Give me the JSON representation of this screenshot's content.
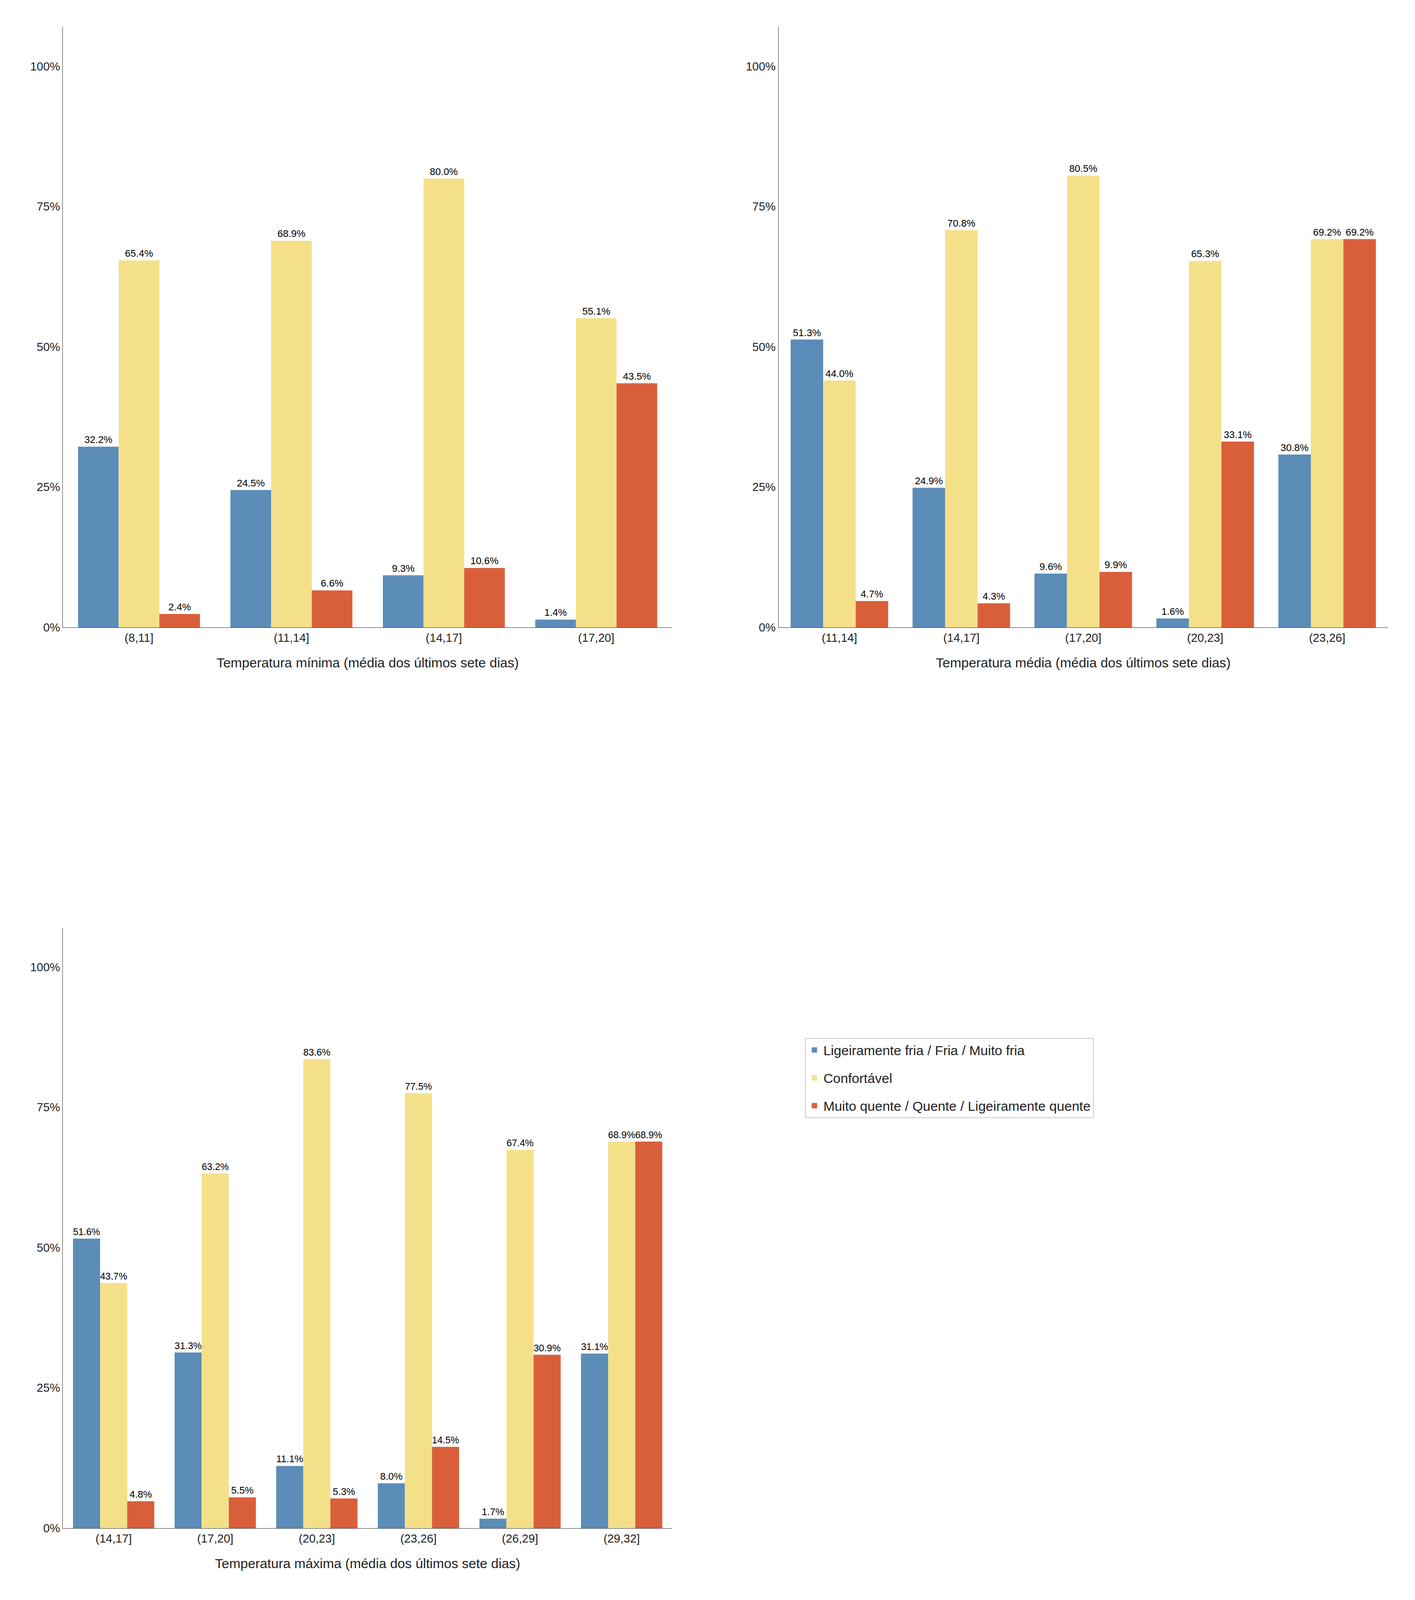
{
  "chart_data": [
    {
      "type": "bar",
      "xlabel": "Temperatura mínima (média dos últimos sete dias)",
      "categories": [
        "(8,11]",
        "(11,14]",
        "(14,17]",
        "(17,20]"
      ],
      "series": [
        {
          "name": "Ligeiramente fria / Fria / Muito fria",
          "color": "#5b8db8",
          "values": [
            32.2,
            24.5,
            9.3,
            1.4
          ],
          "value_labels": [
            "32.2%",
            "24.5%",
            "9.3%",
            "1.4%"
          ]
        },
        {
          "name": "Confortável",
          "color": "#f5e08a",
          "values": [
            65.4,
            68.9,
            80.0,
            55.1
          ],
          "value_labels": [
            "65.4%",
            "68.9%",
            "80.0%",
            "55.1%"
          ]
        },
        {
          "name": "Muito quente / Quente / Ligeiramente quente",
          "color": "#d95f3b",
          "values": [
            2.4,
            6.6,
            10.6,
            43.5
          ],
          "value_labels": [
            "2.4%",
            "6.6%",
            "10.6%",
            "43.5%"
          ]
        }
      ],
      "ylim": [
        0,
        107
      ],
      "yticks": [
        {
          "value": 0,
          "label": "0%"
        },
        {
          "value": 25,
          "label": "25%"
        },
        {
          "value": 50,
          "label": "50%"
        },
        {
          "value": 75,
          "label": "75%"
        },
        {
          "value": 100,
          "label": "100%"
        }
      ],
      "grid": false,
      "data_labels": true,
      "legend": "lower right"
    },
    {
      "type": "bar",
      "xlabel": "Temperatura média (média dos últimos sete dias)",
      "categories": [
        "(11,14]",
        "(14,17]",
        "(17,20]",
        "(20,23]",
        "(23,26]"
      ],
      "series": [
        {
          "name": "Ligeiramente fria / Fria / Muito fria",
          "color": "#5b8db8",
          "values": [
            51.3,
            24.9,
            9.6,
            1.6,
            30.8
          ],
          "value_labels": [
            "51.3%",
            "24.9%",
            "9.6%",
            "1.6%",
            "30.8%"
          ]
        },
        {
          "name": "Confortável",
          "color": "#f5e08a",
          "values": [
            44.0,
            70.8,
            80.5,
            65.3,
            69.2
          ],
          "value_labels": [
            "44.0%",
            "70.8%",
            "80.5%",
            "65.3%",
            "69.2%"
          ]
        },
        {
          "name": "Muito quente / Quente / Ligeiramente quente",
          "color": "#d95f3b",
          "values": [
            4.7,
            4.3,
            9.9,
            33.1,
            69.2
          ],
          "value_labels": [
            "4.7%",
            "4.3%",
            "9.9%",
            "33.1%",
            "69.2%"
          ]
        }
      ],
      "ylim": [
        0,
        107
      ],
      "yticks": [
        {
          "value": 0,
          "label": "0%"
        },
        {
          "value": 25,
          "label": "25%"
        },
        {
          "value": 50,
          "label": "50%"
        },
        {
          "value": 75,
          "label": "75%"
        },
        {
          "value": 100,
          "label": "100%"
        }
      ],
      "grid": false,
      "data_labels": true
    },
    {
      "type": "bar",
      "xlabel": "Temperatura máxima (média dos últimos sete dias)",
      "categories": [
        "(14,17]",
        "(17,20]",
        "(20,23]",
        "(23,26]",
        "(26,29]",
        "(29,32]"
      ],
      "series": [
        {
          "name": "Ligeiramente fria / Fria / Muito fria",
          "color": "#5b8db8",
          "values": [
            51.6,
            31.3,
            11.1,
            8.0,
            1.7,
            31.1
          ],
          "value_labels": [
            "51.6%",
            "31.3%",
            "11.1%",
            "8.0%",
            "1.7%",
            "31.1%"
          ]
        },
        {
          "name": "Confortável",
          "color": "#f5e08a",
          "values": [
            43.7,
            63.2,
            83.6,
            77.5,
            67.4,
            68.9
          ],
          "value_labels": [
            "43.7%",
            "63.2%",
            "83.6%",
            "77.5%",
            "67.4%",
            "68.9%"
          ]
        },
        {
          "name": "Muito quente / Quente / Ligeiramente quente",
          "color": "#d95f3b",
          "values": [
            4.8,
            5.5,
            5.3,
            14.5,
            30.9,
            68.9
          ],
          "value_labels": [
            "4.8%",
            "5.5%",
            "5.3%",
            "14.5%",
            "30.9%",
            "68.9%"
          ]
        }
      ],
      "ylim": [
        0,
        107
      ],
      "yticks": [
        {
          "value": 0,
          "label": "0%"
        },
        {
          "value": 25,
          "label": "25%"
        },
        {
          "value": 50,
          "label": "50%"
        },
        {
          "value": 75,
          "label": "75%"
        },
        {
          "value": 100,
          "label": "100%"
        }
      ],
      "grid": false,
      "data_labels": true
    }
  ]
}
